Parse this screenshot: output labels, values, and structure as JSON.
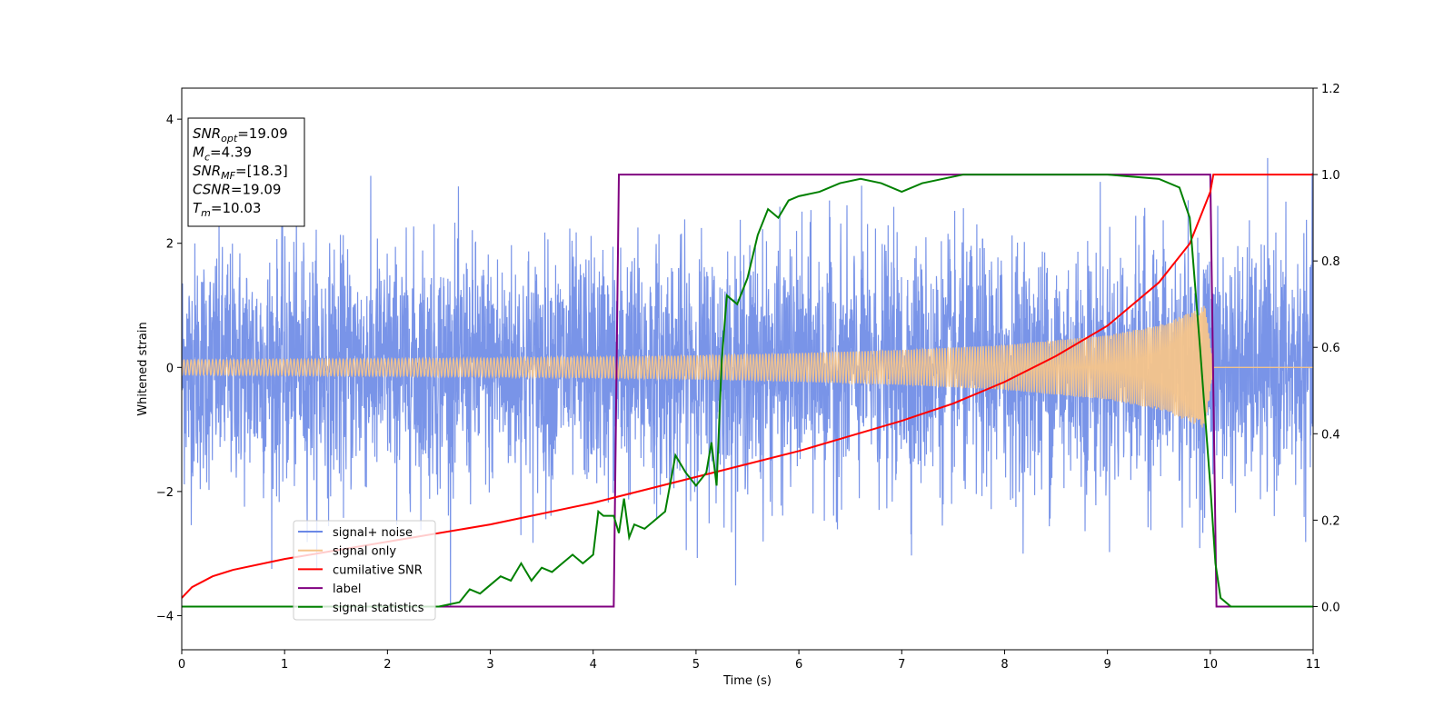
{
  "chart_data": {
    "type": "line",
    "xlabel": "Time (s)",
    "ylabel_left": "Whitened strain",
    "xlim": [
      0,
      11
    ],
    "ylim_left": [
      -4.55,
      4.5
    ],
    "ylim_right": [
      -0.1,
      1.2
    ],
    "x_ticks": [
      "0",
      "1",
      "2",
      "3",
      "4",
      "5",
      "6",
      "7",
      "8",
      "9",
      "10",
      "11"
    ],
    "y_ticks_left": [
      "−4",
      "−2",
      "0",
      "2",
      "4"
    ],
    "y_ticks_right": [
      "0.0",
      "0.2",
      "0.4",
      "0.6",
      "0.8",
      "1.0",
      "1.2"
    ],
    "annotation": {
      "lines": [
        {
          "sym": "SNR",
          "sub": "opt",
          "val": "=19.09"
        },
        {
          "sym": "M",
          "sub": "c",
          "val": "=4.39"
        },
        {
          "sym": "SNR",
          "sub": "MF",
          "val": "=[18.3]"
        },
        {
          "sym": "CSNR",
          "sub": "",
          "val": "=19.09"
        },
        {
          "sym": "T",
          "sub": "m",
          "val": "=10.03"
        }
      ]
    },
    "legend": {
      "placement": "lower-left",
      "entries": [
        "signal+ noise",
        "signal only",
        "cumilative SNR",
        "label",
        "signal statistics"
      ]
    },
    "colors": {
      "noise": "#6a88e6",
      "signal": "#f5c48a",
      "csnr": "#ff0000",
      "label": "#800080",
      "stat": "#008000"
    },
    "series": [
      {
        "name": "signal+ noise",
        "axis": "left",
        "approximation": "dense noise band, amplitude approx ±2.5 with peaks to ±4",
        "noise_sigma": 1.0,
        "t_range": [
          0,
          11
        ]
      },
      {
        "name": "signal only",
        "axis": "left",
        "approximation": "chirp envelope",
        "envelope": {
          "x": [
            0,
            1,
            2,
            3,
            4,
            5,
            6,
            7,
            8,
            9,
            9.5,
            9.8,
            9.95,
            10.03,
            11
          ],
          "y": [
            0.12,
            0.13,
            0.14,
            0.15,
            0.17,
            0.19,
            0.23,
            0.28,
            0.36,
            0.52,
            0.68,
            0.88,
            1.0,
            0.02,
            0.02
          ]
        }
      },
      {
        "name": "cumilative SNR",
        "axis": "right",
        "x": [
          0,
          0.1,
          0.3,
          0.5,
          1,
          1.5,
          2,
          3,
          4,
          5,
          6,
          6.5,
          7,
          7.5,
          8,
          8.5,
          9,
          9.5,
          9.8,
          10.0,
          10.03,
          11
        ],
        "y": [
          0.02,
          0.045,
          0.07,
          0.085,
          0.11,
          0.13,
          0.15,
          0.19,
          0.24,
          0.3,
          0.36,
          0.395,
          0.43,
          0.47,
          0.52,
          0.58,
          0.65,
          0.75,
          0.84,
          0.96,
          1.0,
          1.0
        ]
      },
      {
        "name": "label",
        "axis": "right",
        "x": [
          0,
          4.2,
          4.25,
          10.0,
          10.06,
          11
        ],
        "y": [
          0,
          0,
          1,
          1,
          0,
          0
        ]
      },
      {
        "name": "signal statistics",
        "axis": "right",
        "x": [
          0,
          1,
          2,
          2.5,
          2.7,
          2.8,
          2.9,
          3.0,
          3.1,
          3.2,
          3.3,
          3.4,
          3.5,
          3.6,
          3.7,
          3.8,
          3.9,
          4.0,
          4.05,
          4.1,
          4.2,
          4.25,
          4.3,
          4.35,
          4.4,
          4.5,
          4.6,
          4.7,
          4.8,
          4.9,
          5.0,
          5.1,
          5.15,
          5.2,
          5.25,
          5.3,
          5.4,
          5.5,
          5.6,
          5.7,
          5.8,
          5.9,
          6.0,
          6.2,
          6.4,
          6.6,
          6.8,
          7.0,
          7.2,
          7.4,
          7.6,
          7.8,
          8.0,
          8.5,
          9.0,
          9.5,
          9.7,
          9.8,
          9.9,
          10.0,
          10.05,
          10.1,
          10.2,
          11
        ],
        "y": [
          0,
          0,
          0,
          0.0,
          0.01,
          0.04,
          0.03,
          0.05,
          0.07,
          0.06,
          0.1,
          0.06,
          0.09,
          0.08,
          0.1,
          0.12,
          0.1,
          0.12,
          0.22,
          0.21,
          0.21,
          0.17,
          0.25,
          0.16,
          0.19,
          0.18,
          0.2,
          0.22,
          0.35,
          0.31,
          0.28,
          0.31,
          0.38,
          0.28,
          0.57,
          0.72,
          0.7,
          0.76,
          0.86,
          0.92,
          0.9,
          0.94,
          0.95,
          0.96,
          0.98,
          0.99,
          0.98,
          0.96,
          0.98,
          0.99,
          1.0,
          1.0,
          1.0,
          1.0,
          1.0,
          0.99,
          0.97,
          0.9,
          0.6,
          0.28,
          0.1,
          0.02,
          0.0,
          0.0
        ]
      }
    ]
  }
}
